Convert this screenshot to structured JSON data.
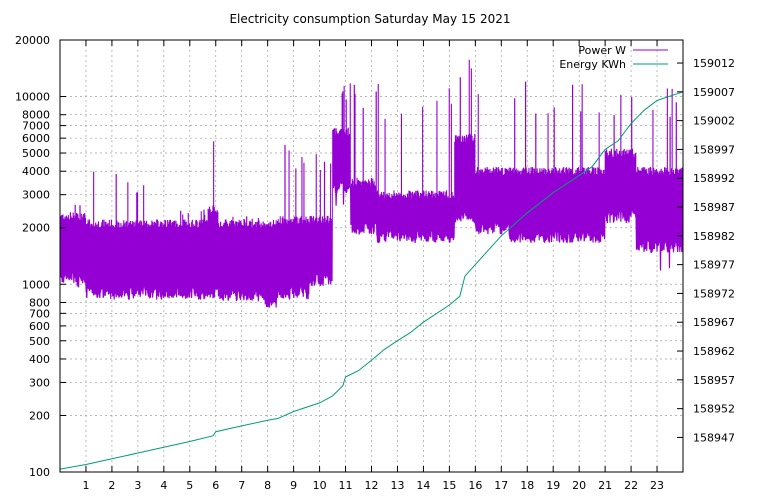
{
  "chart_data": {
    "type": "line",
    "title": "Electricity consumption Saturday May 15 2021",
    "x_range": [
      0,
      24
    ],
    "x_ticks": [
      1,
      2,
      3,
      4,
      5,
      6,
      7,
      8,
      9,
      10,
      11,
      12,
      13,
      14,
      15,
      16,
      17,
      18,
      19,
      20,
      21,
      22,
      23
    ],
    "y_scale": "log",
    "y_range": [
      100,
      20000
    ],
    "y_ticks": [
      100,
      200,
      300,
      400,
      500,
      600,
      700,
      800,
      1000,
      2000,
      3000,
      4000,
      5000,
      6000,
      7000,
      8000,
      10000,
      20000
    ],
    "y2_range": [
      158941,
      159016
    ],
    "y2_ticks": [
      158947,
      158952,
      158957,
      158962,
      158967,
      158972,
      158977,
      158982,
      158987,
      158992,
      158997,
      159002,
      159007,
      159012
    ],
    "grid": true,
    "legend_position": "top-right",
    "colors": {
      "power": "#9400d3",
      "energy": "#009e73"
    },
    "series": [
      {
        "name": "Power W",
        "axis": "left",
        "bands": [
          {
            "x0": 0,
            "x1": 1,
            "low": 1100,
            "high": 2300,
            "lowMin": 950,
            "highMax": 2800
          },
          {
            "x0": 1,
            "x1": 2,
            "low": 900,
            "high": 2100,
            "lowMin": 850,
            "highMax": 4000
          },
          {
            "x0": 2,
            "x1": 4.3,
            "low": 900,
            "high": 2100,
            "lowMin": 850,
            "highMax": 4000
          },
          {
            "x0": 4.3,
            "x1": 5.7,
            "low": 900,
            "high": 2100,
            "lowMin": 850,
            "highMax": 2500
          },
          {
            "x0": 5.7,
            "x1": 6.1,
            "low": 900,
            "high": 2500,
            "lowMin": 850,
            "highMax": 6000
          },
          {
            "x0": 6.1,
            "x1": 7.9,
            "low": 880,
            "high": 2100,
            "lowMin": 820,
            "highMax": 2300
          },
          {
            "x0": 7.9,
            "x1": 8.4,
            "low": 800,
            "high": 2100,
            "lowMin": 780,
            "highMax": 5300
          },
          {
            "x0": 8.4,
            "x1": 9.6,
            "low": 900,
            "high": 2200,
            "lowMin": 800,
            "highMax": 5500
          },
          {
            "x0": 9.6,
            "x1": 10.5,
            "low": 1050,
            "high": 2200,
            "lowMin": 1050,
            "highMax": 5000
          },
          {
            "x0": 10.5,
            "x1": 11.2,
            "low": 3300,
            "high": 6500,
            "lowMin": 2000,
            "highMax": 12000
          },
          {
            "x0": 11.2,
            "x1": 12.2,
            "low": 2000,
            "high": 3500,
            "lowMin": 1800,
            "highMax": 12000
          },
          {
            "x0": 12.2,
            "x1": 15.2,
            "low": 1800,
            "high": 3000,
            "lowMin": 1700,
            "highMax": 12000
          },
          {
            "x0": 15.2,
            "x1": 16.0,
            "low": 2300,
            "high": 6000,
            "lowMin": 2000,
            "highMax": 17500
          },
          {
            "x0": 16.0,
            "x1": 17.3,
            "low": 2000,
            "high": 4000,
            "lowMin": 1900,
            "highMax": 12000
          },
          {
            "x0": 17.3,
            "x1": 21.0,
            "low": 1800,
            "high": 4000,
            "lowMin": 1700,
            "highMax": 12000
          },
          {
            "x0": 21.0,
            "x1": 22.2,
            "low": 2300,
            "high": 5000,
            "lowMin": 2100,
            "highMax": 10500
          },
          {
            "x0": 22.2,
            "x1": 24.0,
            "low": 1600,
            "high": 4000,
            "lowMin": 1150,
            "highMax": 11500
          }
        ]
      },
      {
        "name": "Energy KWh",
        "axis": "right",
        "x": [
          0,
          1,
          2,
          3,
          4,
          5,
          5.9,
          6,
          7,
          8,
          8.4,
          9,
          10,
          10.5,
          10.9,
          11,
          11.5,
          12,
          12.5,
          13,
          13.5,
          14,
          15,
          15.4,
          15.6,
          16,
          16.5,
          17,
          17.5,
          18,
          19,
          20,
          20.5,
          21,
          21.5,
          22,
          22.5,
          23,
          24
        ],
        "y": [
          158941.5,
          158942.3,
          158943.3,
          158944.3,
          158945.3,
          158946.3,
          158947.3,
          158948,
          158949,
          158950,
          158950.3,
          158951.5,
          158953,
          158954.2,
          158956,
          158957.5,
          158958.6,
          158960.4,
          158962.3,
          158963.8,
          158965.2,
          158967,
          158970,
          158971.5,
          158975,
          158977,
          158979.5,
          158982,
          158984,
          158986,
          158989.5,
          158992.5,
          158994,
          158997,
          158998.5,
          159001.5,
          159003.8,
          159005.5,
          159007
        ]
      }
    ]
  }
}
